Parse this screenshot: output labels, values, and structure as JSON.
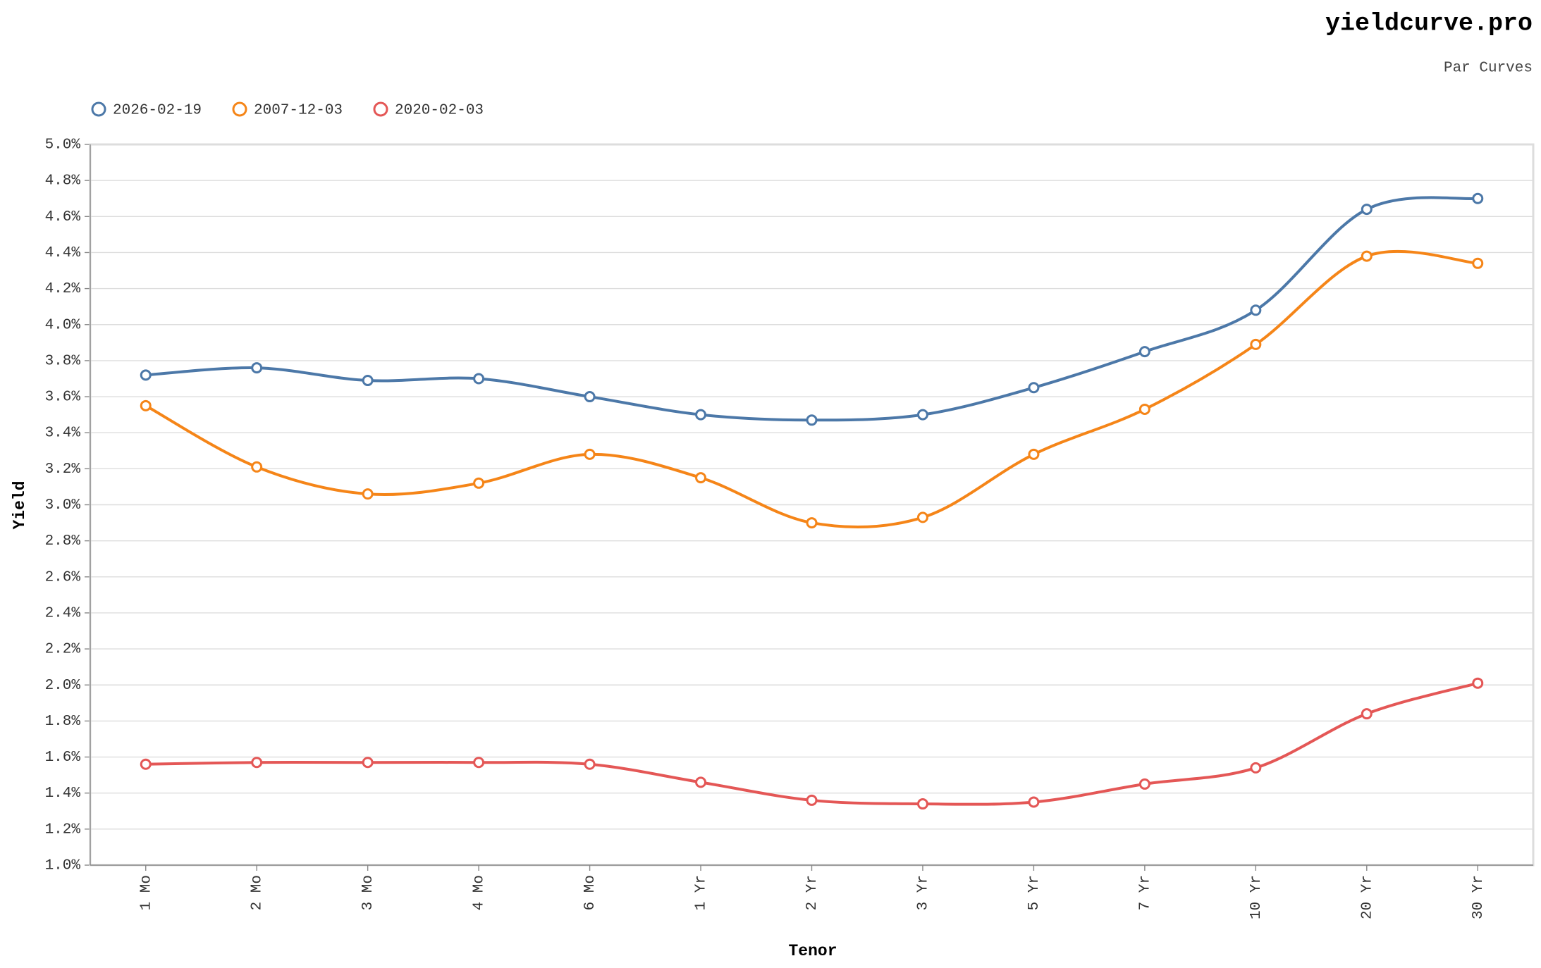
{
  "chart_data": {
    "type": "line",
    "title": "yieldcurve.pro",
    "subtitle": "Par Curves",
    "x_label": "Tenor",
    "y_label": "Yield",
    "categories": [
      "1 Mo",
      "2 Mo",
      "3 Mo",
      "4 Mo",
      "6 Mo",
      "1 Yr",
      "2 Yr",
      "3 Yr",
      "5 Yr",
      "7 Yr",
      "10 Yr",
      "20 Yr",
      "30 Yr"
    ],
    "series": [
      {
        "name": "2026-02-19",
        "color": "#4c78a8",
        "values": [
          3.72,
          3.76,
          3.69,
          3.7,
          3.6,
          3.5,
          3.47,
          3.5,
          3.65,
          3.85,
          4.08,
          4.64,
          4.7
        ]
      },
      {
        "name": "2007-12-03",
        "color": "#f58518",
        "values": [
          3.55,
          3.21,
          3.06,
          3.12,
          3.28,
          3.15,
          2.9,
          2.93,
          3.28,
          3.53,
          3.89,
          4.38,
          4.34
        ]
      },
      {
        "name": "2020-02-03",
        "color": "#e45756",
        "values": [
          1.56,
          1.57,
          1.57,
          1.57,
          1.56,
          1.46,
          1.36,
          1.34,
          1.35,
          1.45,
          1.54,
          1.84,
          2.01
        ]
      }
    ],
    "ylim": [
      1.0,
      5.0
    ],
    "yticks": [
      {
        "value": 1.0,
        "label": "1.0%"
      },
      {
        "value": 1.2,
        "label": "1.2%"
      },
      {
        "value": 1.4,
        "label": "1.4%"
      },
      {
        "value": 1.6,
        "label": "1.6%"
      },
      {
        "value": 1.8,
        "label": "1.8%"
      },
      {
        "value": 2.0,
        "label": "2.0%"
      },
      {
        "value": 2.2,
        "label": "2.2%"
      },
      {
        "value": 2.4,
        "label": "2.4%"
      },
      {
        "value": 2.6,
        "label": "2.6%"
      },
      {
        "value": 2.8,
        "label": "2.8%"
      },
      {
        "value": 3.0,
        "label": "3.0%"
      },
      {
        "value": 3.2,
        "label": "3.2%"
      },
      {
        "value": 3.4,
        "label": "3.4%"
      },
      {
        "value": 3.6,
        "label": "3.6%"
      },
      {
        "value": 3.8,
        "label": "3.8%"
      },
      {
        "value": 4.0,
        "label": "4.0%"
      },
      {
        "value": 4.2,
        "label": "4.2%"
      },
      {
        "value": 4.4,
        "label": "4.4%"
      },
      {
        "value": 4.6,
        "label": "4.6%"
      },
      {
        "value": 4.8,
        "label": "4.8%"
      },
      {
        "value": 5.0,
        "label": "5.0%"
      }
    ],
    "grid": true,
    "legend": "top-left"
  }
}
